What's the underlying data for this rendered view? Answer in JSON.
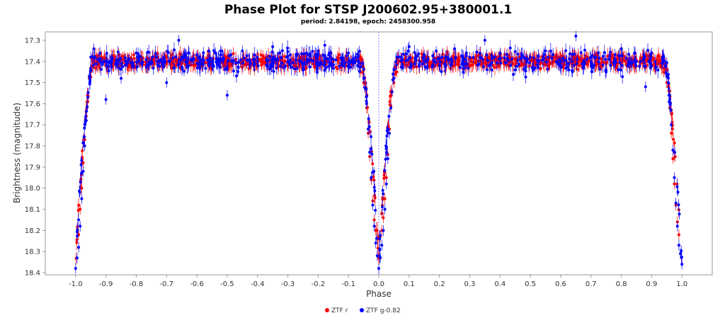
{
  "chart_data": {
    "type": "scatter",
    "title": "Phase Plot for STSP J200602.95+380001.1",
    "subtitle": "period: 2.84198, epoch: 2458300.958",
    "xlabel": "Phase",
    "ylabel": "Brightness (magnitude)",
    "xlim": [
      -1.1,
      1.1
    ],
    "ylim": [
      18.41,
      17.26
    ],
    "y_inverted": true,
    "x_ticks": [
      "-1.0",
      "-0.9",
      "-0.8",
      "-0.7",
      "-0.6",
      "-0.5",
      "-0.4",
      "-0.3",
      "-0.2",
      "-0.1",
      "0.0",
      "0.1",
      "0.2",
      "0.3",
      "0.4",
      "0.5",
      "0.6",
      "0.7",
      "0.8",
      "0.9",
      "1.0"
    ],
    "y_ticks": [
      "17.3",
      "17.4",
      "17.5",
      "17.6",
      "17.7",
      "17.8",
      "17.9",
      "18.0",
      "18.1",
      "18.2",
      "18.3",
      "18.4"
    ],
    "reference_line_x": 0.0,
    "grid": false,
    "legend_position": "bottom",
    "light_curve_model": {
      "baseline_mag": 17.4,
      "eclipse_depth_mag": 0.95,
      "eclipse_half_width_phase": 0.06,
      "scatter_mag": 0.03
    },
    "series": [
      {
        "name": "ZTF r",
        "color": "#ff0000",
        "points": [
          [
            -0.99,
            18.22
          ],
          [
            -0.985,
            18.1
          ],
          [
            -0.98,
            18.0
          ],
          [
            -0.975,
            17.88
          ],
          [
            -0.97,
            17.77
          ],
          [
            -0.965,
            17.66
          ],
          [
            -0.96,
            17.56
          ],
          [
            -0.955,
            17.48
          ],
          [
            -0.95,
            17.44
          ],
          [
            -0.94,
            17.41
          ],
          [
            -0.92,
            17.43
          ],
          [
            -0.9,
            17.4
          ],
          [
            -0.86,
            17.39
          ],
          [
            -0.8,
            17.42
          ],
          [
            -0.75,
            17.4
          ],
          [
            -0.7,
            17.41
          ],
          [
            -0.65,
            17.38
          ],
          [
            -0.6,
            17.4
          ],
          [
            -0.55,
            17.41
          ],
          [
            -0.5,
            17.4
          ],
          [
            -0.45,
            17.39
          ],
          [
            -0.4,
            17.41
          ],
          [
            -0.35,
            17.4
          ],
          [
            -0.3,
            17.42
          ],
          [
            -0.25,
            17.4
          ],
          [
            -0.2,
            17.39
          ],
          [
            -0.15,
            17.4
          ],
          [
            -0.1,
            17.42
          ],
          [
            -0.06,
            17.45
          ],
          [
            -0.05,
            17.5
          ],
          [
            -0.04,
            17.62
          ],
          [
            -0.035,
            17.74
          ],
          [
            -0.03,
            17.85
          ],
          [
            -0.025,
            17.96
          ],
          [
            -0.02,
            18.06
          ],
          [
            -0.015,
            18.15
          ],
          [
            -0.01,
            18.2
          ],
          [
            0.0,
            18.23
          ],
          [
            0.01,
            18.2
          ],
          [
            0.015,
            18.14
          ],
          [
            0.02,
            18.05
          ],
          [
            0.025,
            17.95
          ],
          [
            0.03,
            17.84
          ],
          [
            0.035,
            17.72
          ],
          [
            0.04,
            17.61
          ],
          [
            0.05,
            17.5
          ],
          [
            0.06,
            17.45
          ],
          [
            0.1,
            17.41
          ],
          [
            0.15,
            17.4
          ],
          [
            0.2,
            17.42
          ],
          [
            0.25,
            17.4
          ],
          [
            0.3,
            17.39
          ],
          [
            0.35,
            17.41
          ],
          [
            0.4,
            17.4
          ],
          [
            0.45,
            17.42
          ],
          [
            0.5,
            17.4
          ],
          [
            0.55,
            17.39
          ],
          [
            0.6,
            17.41
          ],
          [
            0.65,
            17.38
          ],
          [
            0.7,
            17.4
          ],
          [
            0.75,
            17.41
          ],
          [
            0.8,
            17.39
          ],
          [
            0.86,
            17.4
          ],
          [
            0.9,
            17.42
          ],
          [
            0.94,
            17.45
          ],
          [
            0.95,
            17.5
          ],
          [
            0.96,
            17.62
          ],
          [
            0.965,
            17.74
          ],
          [
            0.97,
            17.86
          ],
          [
            0.975,
            17.98
          ],
          [
            0.98,
            18.08
          ],
          [
            0.985,
            18.16
          ],
          [
            0.99,
            18.22
          ]
        ]
      },
      {
        "name": "ZTF g-0.82",
        "color": "#0000ff",
        "points": [
          [
            -1.0,
            18.38
          ],
          [
            -0.995,
            18.33
          ],
          [
            -0.99,
            18.28
          ],
          [
            -0.985,
            18.18
          ],
          [
            -0.98,
            18.05
          ],
          [
            -0.975,
            17.92
          ],
          [
            -0.97,
            17.8
          ],
          [
            -0.965,
            17.68
          ],
          [
            -0.96,
            17.57
          ],
          [
            -0.955,
            17.47
          ],
          [
            -0.95,
            17.38
          ],
          [
            -0.94,
            17.34
          ],
          [
            -0.92,
            17.4
          ],
          [
            -0.9,
            17.58
          ],
          [
            -0.88,
            17.39
          ],
          [
            -0.85,
            17.48
          ],
          [
            -0.8,
            17.36
          ],
          [
            -0.75,
            17.41
          ],
          [
            -0.7,
            17.5
          ],
          [
            -0.66,
            17.3
          ],
          [
            -0.6,
            17.37
          ],
          [
            -0.55,
            17.42
          ],
          [
            -0.5,
            17.56
          ],
          [
            -0.45,
            17.35
          ],
          [
            -0.4,
            17.4
          ],
          [
            -0.35,
            17.33
          ],
          [
            -0.3,
            17.38
          ],
          [
            -0.25,
            17.44
          ],
          [
            -0.2,
            17.35
          ],
          [
            -0.15,
            17.39
          ],
          [
            -0.1,
            17.36
          ],
          [
            -0.07,
            17.42
          ],
          [
            -0.05,
            17.48
          ],
          [
            -0.04,
            17.6
          ],
          [
            -0.035,
            17.72
          ],
          [
            -0.03,
            17.83
          ],
          [
            -0.025,
            17.95
          ],
          [
            -0.02,
            18.08
          ],
          [
            -0.015,
            18.18
          ],
          [
            -0.01,
            18.26
          ],
          [
            -0.005,
            18.32
          ],
          [
            0.0,
            18.38
          ],
          [
            0.005,
            18.33
          ],
          [
            0.01,
            18.27
          ],
          [
            0.015,
            18.2
          ],
          [
            0.02,
            18.1
          ],
          [
            0.025,
            17.98
          ],
          [
            0.03,
            17.86
          ],
          [
            0.035,
            17.74
          ],
          [
            0.04,
            17.62
          ],
          [
            0.05,
            17.48
          ],
          [
            0.06,
            17.38
          ],
          [
            0.1,
            17.33
          ],
          [
            0.15,
            17.37
          ],
          [
            0.2,
            17.42
          ],
          [
            0.25,
            17.34
          ],
          [
            0.3,
            17.38
          ],
          [
            0.35,
            17.3
          ],
          [
            0.4,
            17.36
          ],
          [
            0.45,
            17.44
          ],
          [
            0.5,
            17.38
          ],
          [
            0.55,
            17.35
          ],
          [
            0.6,
            17.4
          ],
          [
            0.65,
            17.28
          ],
          [
            0.7,
            17.38
          ],
          [
            0.75,
            17.45
          ],
          [
            0.8,
            17.34
          ],
          [
            0.85,
            17.4
          ],
          [
            0.88,
            17.52
          ],
          [
            0.9,
            17.36
          ],
          [
            0.94,
            17.38
          ],
          [
            0.95,
            17.47
          ],
          [
            0.96,
            17.58
          ],
          [
            0.965,
            17.7
          ],
          [
            0.97,
            17.82
          ],
          [
            0.975,
            17.95
          ],
          [
            0.98,
            18.07
          ],
          [
            0.985,
            18.18
          ],
          [
            0.99,
            18.27
          ],
          [
            0.995,
            18.31
          ],
          [
            1.0,
            18.36
          ]
        ]
      }
    ]
  }
}
